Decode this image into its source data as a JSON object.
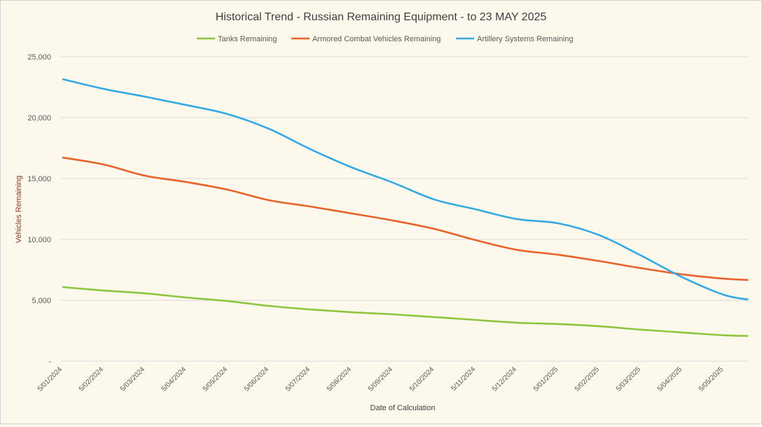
{
  "chart_data": {
    "type": "line",
    "title": "Historical Trend - Russian Remaining Equipment - to 23 MAY 2025",
    "xlabel": "Date of Calculation",
    "ylabel": "Vehicles Remaining",
    "ylim": [
      0,
      25000
    ],
    "yticks": [
      "-",
      "5,000",
      "10,000",
      "15,000",
      "20,000",
      "25,000"
    ],
    "ytick_values": [
      0,
      5000,
      10000,
      15000,
      20000,
      25000
    ],
    "xticks": [
      "5/01/2024",
      "5/02/2024",
      "5/03/2024",
      "5/04/2024",
      "5/05/2024",
      "5/06/2024",
      "5/07/2024",
      "5/08/2024",
      "5/09/2024",
      "5/10/2024",
      "5/11/2024",
      "5/12/2024",
      "5/01/2025",
      "5/02/2025",
      "5/03/2025",
      "5/04/2025",
      "5/05/2025"
    ],
    "x": [
      0,
      1,
      2,
      3,
      4,
      5,
      6,
      7,
      8,
      9,
      10,
      11,
      12,
      13,
      14,
      15,
      16,
      16.6
    ],
    "xlim": [
      0,
      16.6
    ],
    "grid": true,
    "legend_position": "top",
    "series": [
      {
        "name": "Tanks Remaining",
        "color": "#8cc63f",
        "values": [
          6090,
          5800,
          5570,
          5230,
          4940,
          4540,
          4250,
          4020,
          3850,
          3620,
          3390,
          3160,
          3050,
          2870,
          2590,
          2360,
          2130,
          2070
        ]
      },
      {
        "name": "Armored Combat Vehicles Remaining",
        "color": "#e8622a",
        "values": [
          16720,
          16150,
          15230,
          14710,
          14080,
          13220,
          12700,
          12130,
          11550,
          10860,
          9940,
          9140,
          8740,
          8220,
          7640,
          7130,
          6780,
          6670
        ]
      },
      {
        "name": "Artillery Systems Remaining",
        "color": "#33aae8",
        "values": [
          23160,
          22360,
          21720,
          21030,
          20290,
          19080,
          17410,
          15920,
          14660,
          13280,
          12470,
          11670,
          11320,
          10340,
          8680,
          6900,
          5460,
          5060
        ]
      }
    ]
  }
}
